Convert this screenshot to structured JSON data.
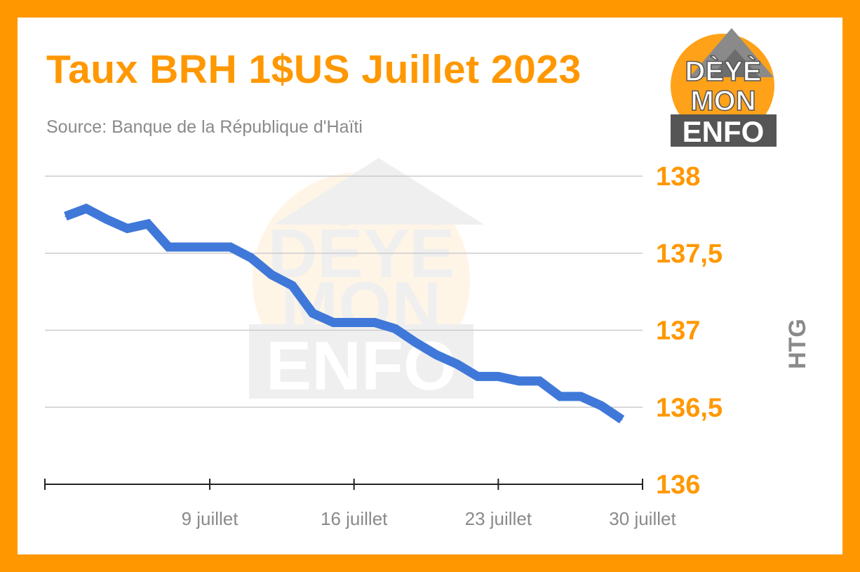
{
  "title": "Taux BRH 1$US Juillet 2023",
  "subtitle": "Source: Banque de la République d'Haïti",
  "logo": {
    "lines": [
      "DÈYÈ",
      "MON",
      "ENFO"
    ],
    "accent_color": "#ff9800",
    "dark_color": "#555555"
  },
  "chart_data": {
    "type": "line",
    "title": "Taux BRH 1$US Juillet 2023",
    "subtitle": "Source: Banque de la République d'Haïti",
    "ylabel": "HTG",
    "xlabel": "",
    "ylim": [
      136,
      138
    ],
    "yticks": [
      136,
      136.5,
      137,
      137.5,
      138
    ],
    "ytick_labels": [
      "136",
      "136,5",
      "137",
      "137,5",
      "138"
    ],
    "xlim": [
      "2023-07-01",
      "2023-07-30"
    ],
    "xticks": [
      "2023-07-09",
      "2023-07-16",
      "2023-07-23",
      "2023-07-30"
    ],
    "xtick_labels": [
      "9 juillet",
      "16 juillet",
      "23 juillet",
      "30 juillet"
    ],
    "grid": true,
    "colors": {
      "line": "#3f78d8",
      "accent": "#ff9800",
      "grid": "#cccccc",
      "tick_text": "#8a8a8a"
    },
    "series": [
      {
        "x": [
          "2023-07-02",
          "2023-07-03",
          "2023-07-04",
          "2023-07-05",
          "2023-07-06",
          "2023-07-07",
          "2023-07-08",
          "2023-07-09",
          "2023-07-10",
          "2023-07-11",
          "2023-07-12",
          "2023-07-13",
          "2023-07-14",
          "2023-07-15",
          "2023-07-16",
          "2023-07-17",
          "2023-07-18",
          "2023-07-19",
          "2023-07-20",
          "2023-07-21",
          "2023-07-22",
          "2023-07-23",
          "2023-07-24",
          "2023-07-25",
          "2023-07-26",
          "2023-07-27",
          "2023-07-28",
          "2023-07-29"
        ],
        "values": [
          137.74,
          137.79,
          137.72,
          137.66,
          137.69,
          137.54,
          137.54,
          137.54,
          137.54,
          137.47,
          137.36,
          137.29,
          137.11,
          137.05,
          137.05,
          137.05,
          137.01,
          136.92,
          136.84,
          136.78,
          136.7,
          136.7,
          136.67,
          136.67,
          136.57,
          136.57,
          136.51,
          136.42
        ]
      }
    ]
  }
}
